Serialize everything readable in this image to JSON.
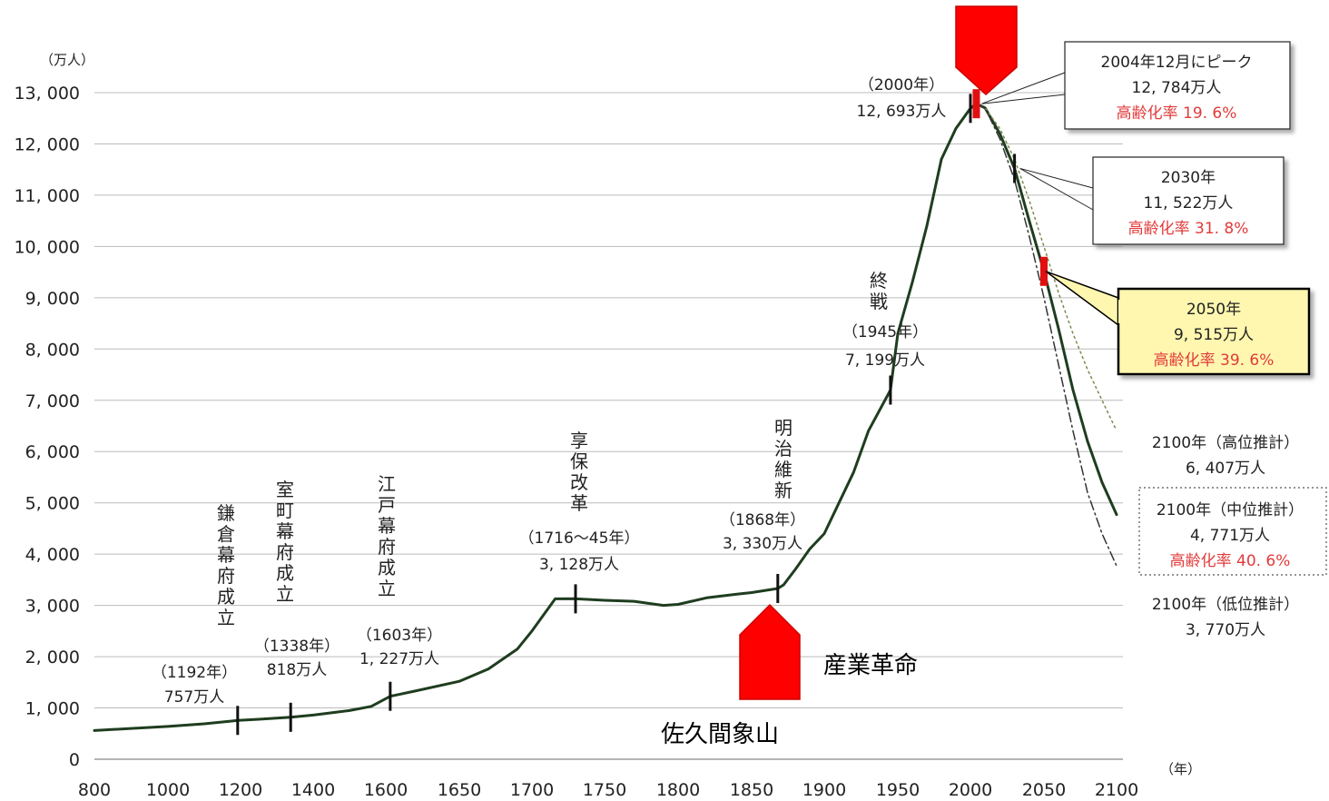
{
  "chart_data": {
    "type": "line",
    "y_unit_label": "（万人）",
    "x_unit_label": "（年）",
    "ylim": [
      0,
      13000
    ],
    "y_ticks": [
      0,
      1000,
      2000,
      3000,
      4000,
      5000,
      6000,
      7000,
      8000,
      9000,
      10000,
      11000,
      12000,
      13000
    ],
    "y_tick_labels": [
      "0",
      "1, 000",
      "2, 000",
      "3, 000",
      "4, 000",
      "5, 000",
      "6, 000",
      "7, 000",
      "8, 000",
      "9, 000",
      "10, 000",
      "11, 000",
      "12, 000",
      "13, 000"
    ],
    "x_ticks": [
      800,
      1000,
      1200,
      1400,
      1600,
      1650,
      1700,
      1750,
      1800,
      1850,
      1900,
      1950,
      2000,
      2050,
      2100
    ],
    "x_tick_labels": [
      "800",
      "1000",
      "1200",
      "1400",
      "1600",
      "1650",
      "1700",
      "1750",
      "1800",
      "1850",
      "1900",
      "1950",
      "2000",
      "2050",
      "2100"
    ],
    "grid": true,
    "series": [
      {
        "style": "solid",
        "x": [
          800,
          900,
          1000,
          1100,
          1192,
          1250,
          1338,
          1400,
          1500,
          1560,
          1603,
          1620,
          1650,
          1670,
          1690,
          1700,
          1716,
          1730,
          1750,
          1770,
          1790,
          1800,
          1820,
          1840,
          1850,
          1868,
          1872,
          1880,
          1890,
          1900,
          1910,
          1920,
          1930,
          1945,
          1950,
          1960,
          1970,
          1980,
          1990,
          2000,
          2004,
          2010,
          2020,
          2030,
          2040,
          2050,
          2060,
          2070,
          2080,
          2090,
          2100
        ],
        "y": [
          560,
          600,
          640,
          690,
          757,
          780,
          818,
          860,
          950,
          1030,
          1227,
          1330,
          1520,
          1760,
          2150,
          2500,
          3128,
          3130,
          3100,
          3080,
          3000,
          3020,
          3150,
          3220,
          3250,
          3330,
          3400,
          3700,
          4100,
          4400,
          5000,
          5600,
          6400,
          7199,
          8300,
          9300,
          10400,
          11700,
          12300,
          12693,
          12784,
          12700,
          12200,
          11522,
          10500,
          9515,
          8400,
          7200,
          6200,
          5400,
          4771
        ]
      },
      {
        "style": "dotted",
        "x": [
          2004,
          2010,
          2020,
          2030,
          2040,
          2050,
          2060,
          2070,
          2080,
          2090,
          2100
        ],
        "y": [
          12784,
          12700,
          12300,
          11700,
          10900,
          10000,
          9100,
          8300,
          7600,
          7000,
          6407
        ]
      },
      {
        "style": "dash-dot",
        "x": [
          2004,
          2010,
          2020,
          2030,
          2040,
          2050,
          2060,
          2070,
          2080,
          2090,
          2100
        ],
        "y": [
          12784,
          12700,
          12100,
          11300,
          10200,
          9000,
          7700,
          6400,
          5200,
          4400,
          3770
        ]
      }
    ],
    "markers": [
      {
        "x": 1192,
        "y": 757,
        "color": "#111111"
      },
      {
        "x": 1338,
        "y": 818,
        "color": "#111111"
      },
      {
        "x": 1603,
        "y": 1227,
        "color": "#111111"
      },
      {
        "x": 1730,
        "y": 3128,
        "color": "#111111"
      },
      {
        "x": 1868,
        "y": 3330,
        "color": "#111111"
      },
      {
        "x": 1945,
        "y": 7199,
        "color": "#111111"
      },
      {
        "x": 2000,
        "y": 12693,
        "color": "#111111"
      },
      {
        "x": 2004,
        "y": 12784,
        "color": "#e01010"
      },
      {
        "x": 2030,
        "y": 11522,
        "color": "#111111"
      },
      {
        "x": 2050,
        "y": 9515,
        "color": "#e01010"
      }
    ],
    "event_labels": [
      {
        "vertical": "鎌倉幕府成立",
        "year_label": "（1192年）",
        "value_label": "757万人",
        "x": 1192,
        "y": 757
      },
      {
        "vertical": "室町幕府成立",
        "year_label": "（1338年）",
        "value_label": "818万人",
        "x": 1338,
        "y": 818
      },
      {
        "vertical": "江戸幕府成立",
        "year_label": "（1603年）",
        "value_label": "1, 227万人",
        "x": 1603,
        "y": 1227
      },
      {
        "vertical": "享保改革",
        "year_label": "（1716～45年）",
        "value_label": "3, 128万人",
        "x": 1730,
        "y": 3128
      },
      {
        "vertical": "明治維新",
        "year_label": "（1868年）",
        "value_label": "3, 330万人",
        "x": 1868,
        "y": 3330
      },
      {
        "vertical": "終戦",
        "year_label": "（1945年）",
        "value_label": "7, 199万人",
        "x": 1945,
        "y": 7199
      },
      {
        "vertical": "",
        "year_label": "（2000年）",
        "value_label": "12, 693万人",
        "x": 2000,
        "y": 12693
      }
    ],
    "callouts": [
      {
        "lines": [
          "2004年12月にピーク",
          "12, 784万人"
        ],
        "red_line": "高齢化率 19. 6%",
        "x": 2004,
        "y": 12784,
        "box": "solid"
      },
      {
        "lines": [
          "2030年",
          "11, 522万人"
        ],
        "red_line": "高齢化率 31. 8%",
        "x": 2030,
        "y": 11522,
        "box": "solid"
      },
      {
        "lines": [
          "2050年",
          "9, 515万人"
        ],
        "red_line": "高齢化率 39. 6%",
        "x": 2050,
        "y": 9515,
        "box": "highlight"
      }
    ],
    "projections": [
      {
        "lines": [
          "2100年（高位推計）",
          "6, 407万人"
        ],
        "red_line": "",
        "box": "none"
      },
      {
        "lines": [
          "2100年（中位推計）",
          "4, 771万人"
        ],
        "red_line": "高齢化率 40. 6%",
        "box": "dotted"
      },
      {
        "lines": [
          "2100年（低位推計）",
          "3, 770万人"
        ],
        "red_line": "",
        "box": "none"
      }
    ],
    "overlays": {
      "sangyo_label": "産業革命",
      "sakuma_label": "佐久間象山",
      "arrow_color": "#ff0000"
    }
  }
}
